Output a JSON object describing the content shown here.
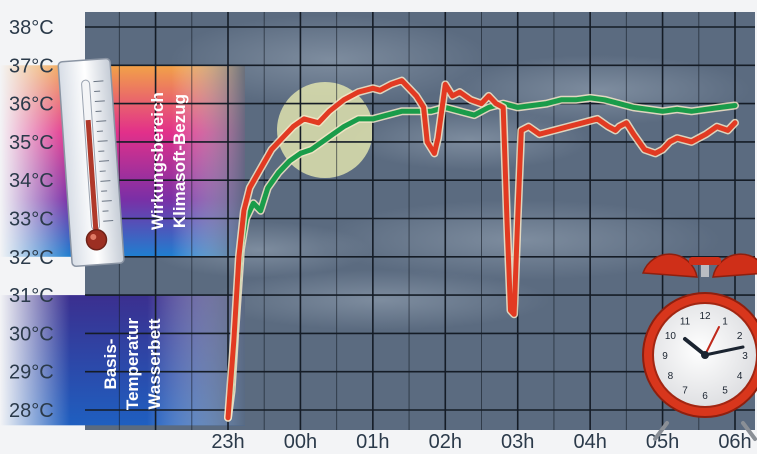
{
  "chart_data": {
    "type": "line",
    "title": "",
    "xlabel": "",
    "ylabel": "",
    "unit": "°C",
    "x_ticks": [
      "23h",
      "00h",
      "01h",
      "02h",
      "03h",
      "04h",
      "05h",
      "06h"
    ],
    "y_ticks": [
      "28°C",
      "29°C",
      "30°C",
      "31°C",
      "32°C",
      "33°C",
      "34°C",
      "35°C",
      "36°C",
      "37°C",
      "38°C"
    ],
    "xlim": [
      23.0,
      30.0
    ],
    "ylim": [
      28.0,
      38.0
    ],
    "grid": true,
    "bands": [
      {
        "label_lines": [
          "Wirkungsbereich",
          "Klimasoft-Bezug"
        ],
        "range": [
          32.0,
          37.0
        ]
      },
      {
        "label_lines": [
          "Basis-",
          "Temperatur",
          "Wasserbett"
        ],
        "range": [
          27.6,
          31.0
        ]
      }
    ],
    "series": [
      {
        "color": "#e23a22",
        "x": [
          23.0,
          23.08,
          23.15,
          23.22,
          23.3,
          23.45,
          23.6,
          23.75,
          23.9,
          24.05,
          24.25,
          24.4,
          24.6,
          24.8,
          25.0,
          25.1,
          25.25,
          25.4,
          25.5,
          25.6,
          25.7,
          25.75,
          25.85,
          25.9,
          26.0,
          26.1,
          26.2,
          26.35,
          26.5,
          26.6,
          26.7,
          26.8,
          26.85,
          26.9,
          26.95,
          27.0,
          27.05,
          27.15,
          27.3,
          27.5,
          27.7,
          27.9,
          28.1,
          28.25,
          28.35,
          28.4,
          28.5,
          28.6,
          28.75,
          28.9,
          29.0,
          29.1,
          29.2,
          29.4,
          29.6,
          29.75,
          29.9,
          30.0
        ],
        "y": [
          27.8,
          29.8,
          32.0,
          33.2,
          33.8,
          34.3,
          34.8,
          35.1,
          35.4,
          35.6,
          35.5,
          35.8,
          36.1,
          36.3,
          36.4,
          36.35,
          36.5,
          36.6,
          36.4,
          36.2,
          35.9,
          35.0,
          34.7,
          35.1,
          36.5,
          36.2,
          36.3,
          36.1,
          36.0,
          36.2,
          36.0,
          35.9,
          33.0,
          30.6,
          30.5,
          33.0,
          35.3,
          35.4,
          35.2,
          35.3,
          35.4,
          35.5,
          35.6,
          35.4,
          35.3,
          35.4,
          35.5,
          35.2,
          34.8,
          34.7,
          34.8,
          35.0,
          35.1,
          35.0,
          35.2,
          35.4,
          35.3,
          35.5
        ]
      },
      {
        "color": "#1a9c4a",
        "x": [
          23.0,
          23.05,
          23.1,
          23.18,
          23.25,
          23.35,
          23.45,
          23.55,
          23.7,
          23.85,
          24.0,
          24.15,
          24.3,
          24.45,
          24.6,
          24.8,
          25.0,
          25.2,
          25.4,
          25.6,
          25.8,
          26.0,
          26.2,
          26.4,
          26.6,
          26.8,
          27.0,
          27.2,
          27.4,
          27.6,
          27.8,
          28.0,
          28.2,
          28.4,
          28.6,
          28.8,
          29.0,
          29.2,
          29.4,
          29.6,
          29.8,
          30.0
        ],
        "y": [
          27.8,
          28.5,
          30.0,
          32.2,
          33.0,
          33.4,
          33.2,
          33.8,
          34.2,
          34.5,
          34.7,
          34.8,
          35.0,
          35.2,
          35.4,
          35.6,
          35.6,
          35.7,
          35.8,
          35.8,
          35.8,
          35.9,
          35.8,
          35.7,
          35.9,
          36.0,
          35.9,
          35.95,
          36.0,
          36.1,
          36.1,
          36.15,
          36.1,
          36.0,
          35.9,
          35.85,
          35.8,
          35.85,
          35.8,
          35.85,
          35.9,
          35.95
        ]
      }
    ],
    "colors": {
      "plot_background": "#5b6b80",
      "grid": "#151c26",
      "text": "#2b3a4a",
      "moon": "#e4e6b0",
      "clock_body": "#d8361c"
    },
    "illustrations": [
      "thermometer",
      "moon",
      "alarm-clock",
      "cloudy-night-sky"
    ]
  }
}
